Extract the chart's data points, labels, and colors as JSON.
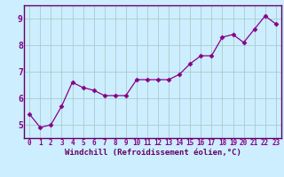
{
  "x": [
    0,
    1,
    2,
    3,
    4,
    5,
    6,
    7,
    8,
    9,
    10,
    11,
    12,
    13,
    14,
    15,
    16,
    17,
    18,
    19,
    20,
    21,
    22,
    23
  ],
  "y": [
    5.4,
    4.9,
    5.0,
    5.7,
    6.6,
    6.4,
    6.3,
    6.1,
    6.1,
    6.1,
    6.7,
    6.7,
    6.7,
    6.7,
    6.9,
    7.3,
    7.6,
    7.6,
    8.3,
    8.4,
    8.1,
    8.6,
    9.1,
    8.8
  ],
  "line_color": "#880088",
  "marker": "D",
  "marker_size": 2.5,
  "bg_color": "#cceeff",
  "grid_color": "#aacccc",
  "xlabel": "Windchill (Refroidissement éolien,°C)",
  "xlabel_color": "#660066",
  "tick_color": "#880088",
  "axis_color": "#660066",
  "xlim": [
    -0.5,
    23.5
  ],
  "ylim": [
    4.5,
    9.5
  ],
  "yticks": [
    5,
    6,
    7,
    8,
    9
  ],
  "xticks": [
    0,
    1,
    2,
    3,
    4,
    5,
    6,
    7,
    8,
    9,
    10,
    11,
    12,
    13,
    14,
    15,
    16,
    17,
    18,
    19,
    20,
    21,
    22,
    23
  ],
  "tick_fontsize": 5.5,
  "xlabel_fontsize": 6.5,
  "ytick_fontsize": 7
}
